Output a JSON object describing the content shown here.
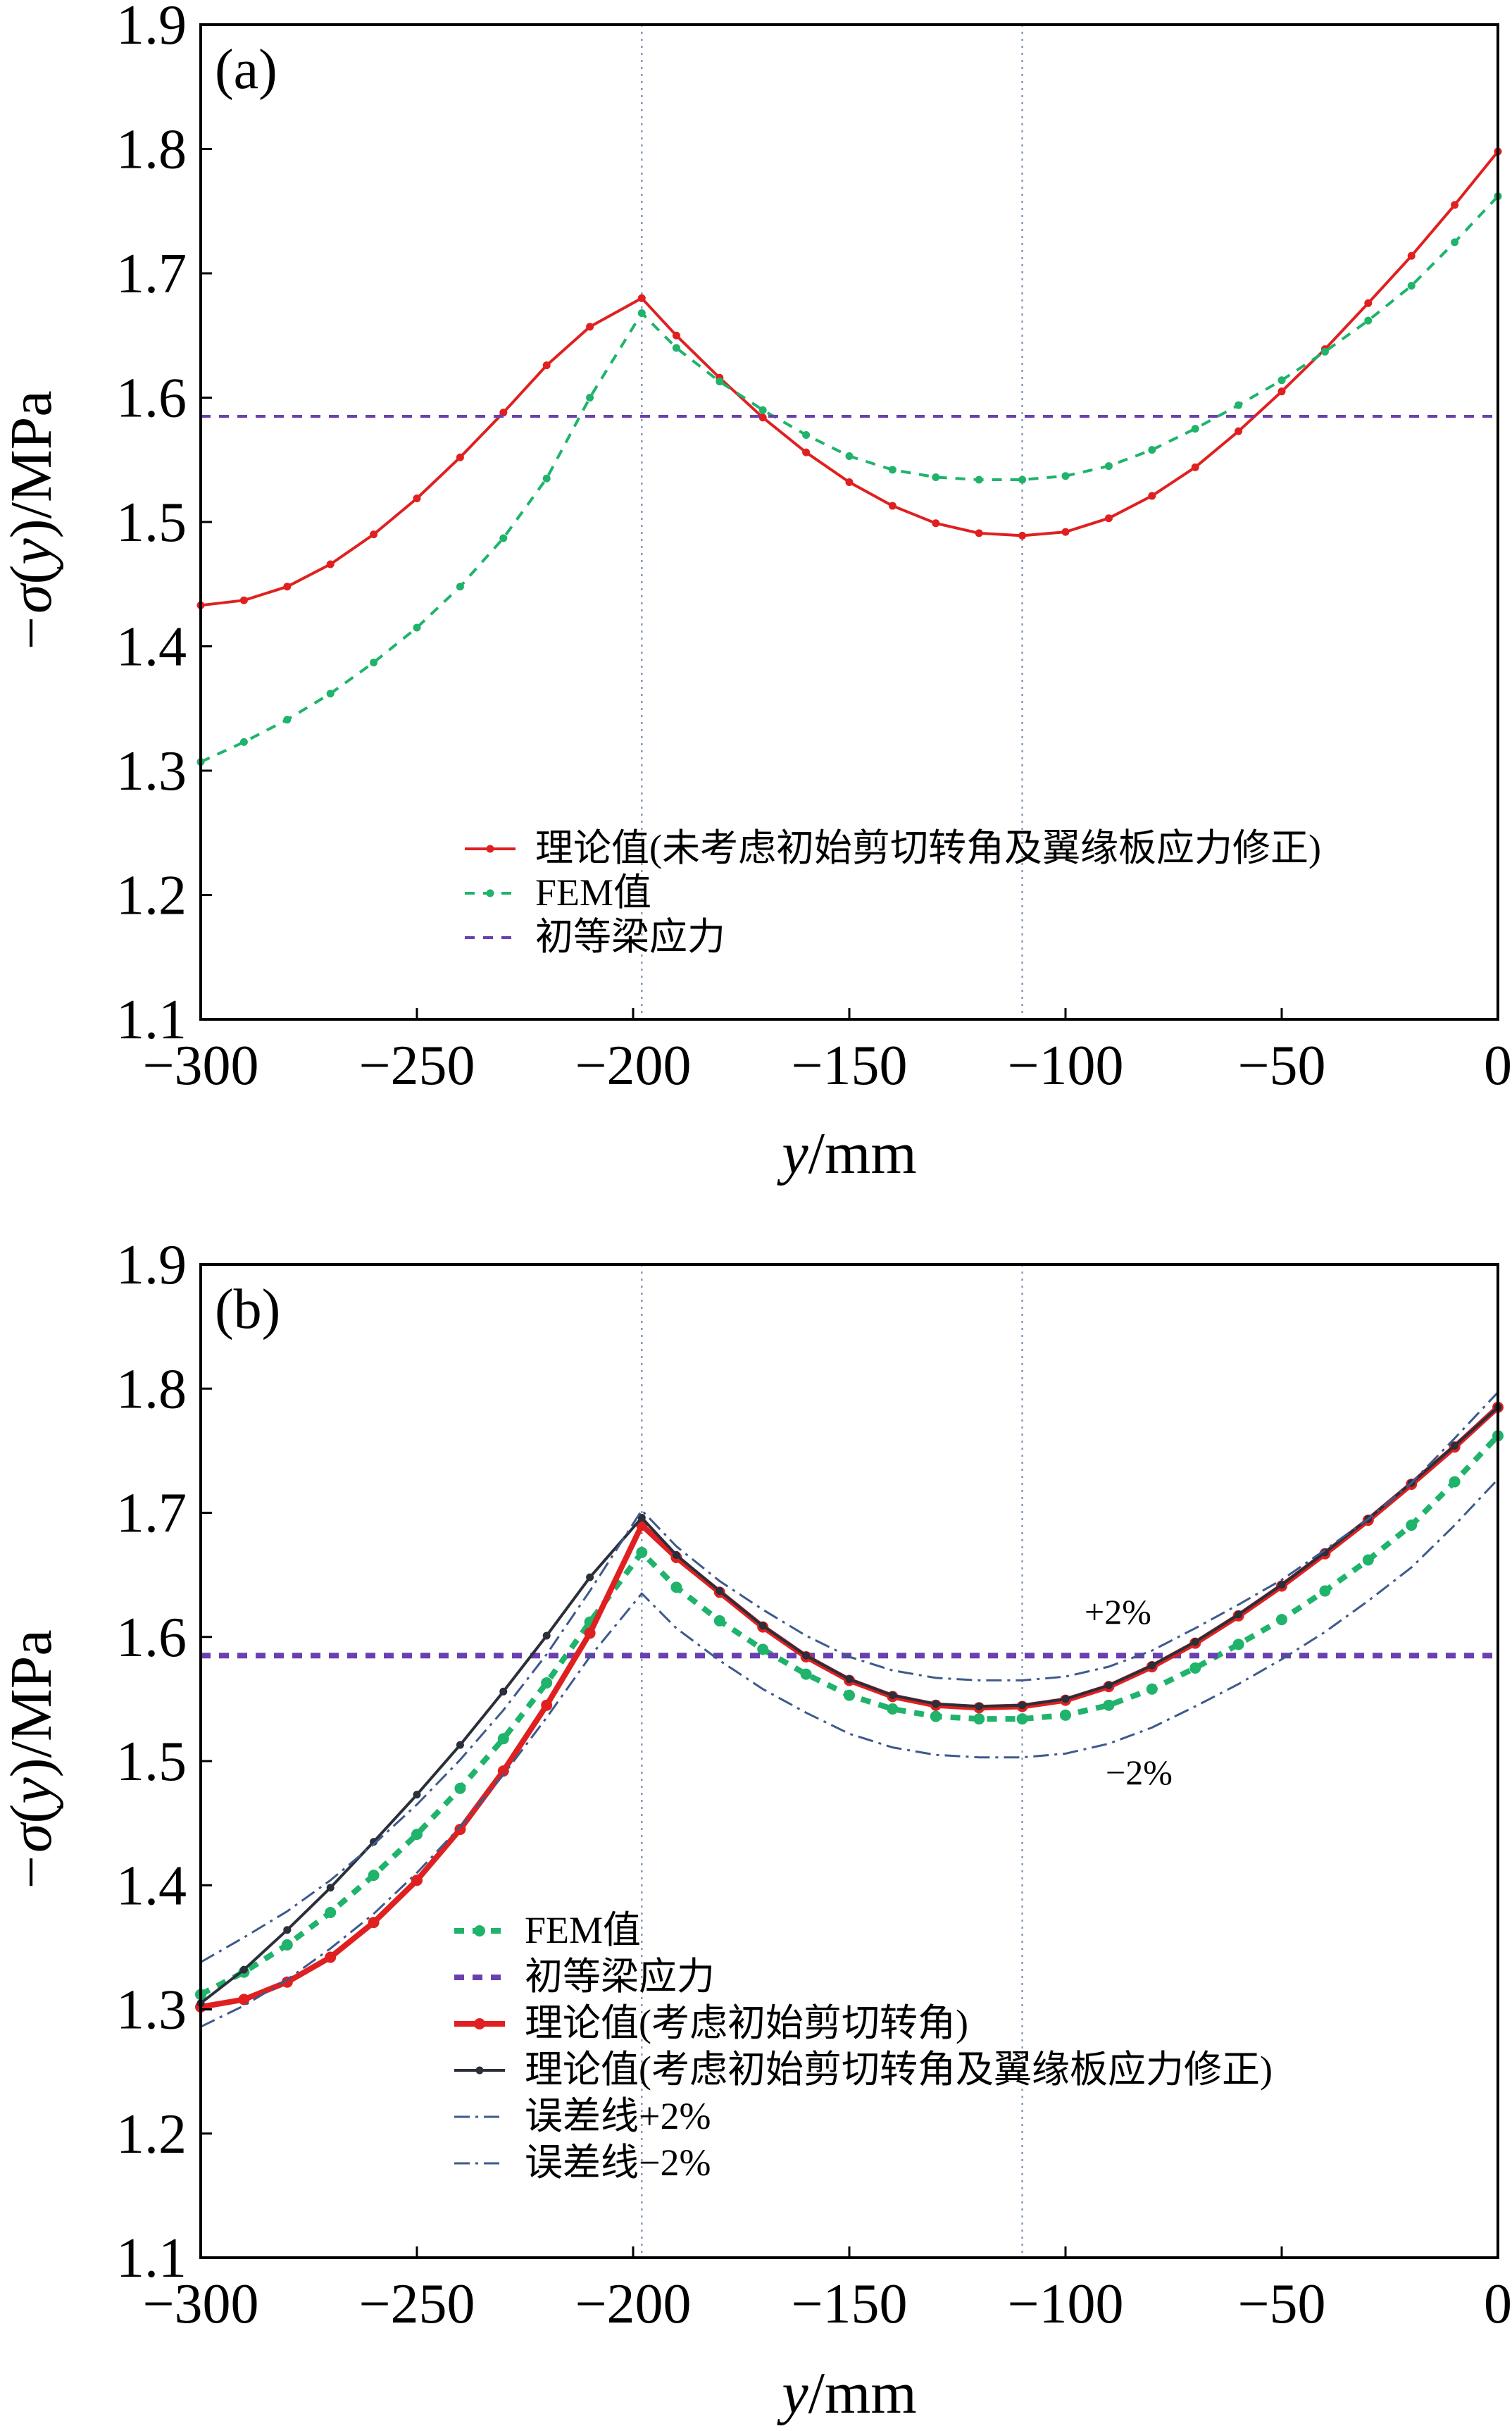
{
  "chart_data": [
    {
      "type": "line",
      "panel_label": "(a)",
      "xlabel": "y/mm",
      "ylabel": "−σ(y)/MPa",
      "xlim": [
        -300,
        0
      ],
      "ylim": [
        1.1,
        1.9
      ],
      "x_ticks": [
        "−300",
        "−250",
        "−200",
        "−150",
        "−100",
        "−50",
        "0"
      ],
      "y_ticks": [
        "1.1",
        "1.2",
        "1.3",
        "1.4",
        "1.5",
        "1.6",
        "1.7",
        "1.8",
        "1.9"
      ],
      "vertical_lines": [
        -198,
        -110
      ],
      "legend_position": "lower-right",
      "series": [
        {
          "name": "理论值(未考虑初始剪切转角及翼缘板应力修正)",
          "color": "#e02020",
          "style": "solid-marker",
          "x": [
            -300,
            -290,
            -280,
            -270,
            -260,
            -250,
            -240,
            -230,
            -220,
            -210,
            -198,
            -190,
            -180,
            -170,
            -160,
            -150,
            -140,
            -130,
            -120,
            -110,
            -100,
            -90,
            -80,
            -70,
            -60,
            -50,
            -40,
            -30,
            -20,
            -10,
            0
          ],
          "values": [
            1.433,
            1.437,
            1.448,
            1.466,
            1.49,
            1.519,
            1.552,
            1.588,
            1.626,
            1.657,
            1.68,
            1.65,
            1.616,
            1.584,
            1.556,
            1.532,
            1.513,
            1.499,
            1.491,
            1.489,
            1.492,
            1.503,
            1.521,
            1.544,
            1.573,
            1.605,
            1.639,
            1.676,
            1.714,
            1.755,
            1.798
          ]
        },
        {
          "name": "FEM值",
          "color": "#1fb36b",
          "style": "dashed-marker",
          "x": [
            -300,
            -290,
            -280,
            -270,
            -260,
            -250,
            -240,
            -230,
            -220,
            -210,
            -198,
            -190,
            -180,
            -170,
            -160,
            -150,
            -140,
            -130,
            -120,
            -110,
            -100,
            -90,
            -80,
            -70,
            -60,
            -50,
            -40,
            -30,
            -20,
            -10,
            0
          ],
          "values": [
            1.307,
            1.323,
            1.341,
            1.362,
            1.387,
            1.415,
            1.448,
            1.487,
            1.535,
            1.6,
            1.668,
            1.64,
            1.613,
            1.59,
            1.57,
            1.553,
            1.542,
            1.536,
            1.534,
            1.534,
            1.537,
            1.545,
            1.558,
            1.575,
            1.594,
            1.614,
            1.637,
            1.662,
            1.69,
            1.725,
            1.762
          ]
        },
        {
          "name": "初等梁应力",
          "color": "#6a3fb0",
          "style": "dashed",
          "x": [
            -300,
            0
          ],
          "values": [
            1.585,
            1.585
          ]
        }
      ]
    },
    {
      "type": "line",
      "panel_label": "(b)",
      "xlabel": "y/mm",
      "ylabel": "−σ(y)/MPa",
      "xlim": [
        -300,
        0
      ],
      "ylim": [
        1.1,
        1.9
      ],
      "x_ticks": [
        "−300",
        "−250",
        "−200",
        "−150",
        "−100",
        "−50",
        "0"
      ],
      "y_ticks": [
        "1.1",
        "1.2",
        "1.3",
        "1.4",
        "1.5",
        "1.6",
        "1.7",
        "1.8",
        "1.9"
      ],
      "vertical_lines": [
        -198,
        -110
      ],
      "legend_position": "lower-left",
      "annotations": [
        "+2%",
        "−2%"
      ],
      "series": [
        {
          "name": "FEM值",
          "color": "#1fb36b",
          "style": "dashed-marker-thick",
          "x": [
            -300,
            -290,
            -280,
            -270,
            -260,
            -250,
            -240,
            -230,
            -220,
            -210,
            -198,
            -190,
            -180,
            -170,
            -160,
            -150,
            -140,
            -130,
            -120,
            -110,
            -100,
            -90,
            -80,
            -70,
            -60,
            -50,
            -40,
            -30,
            -20,
            -10,
            0
          ],
          "values": [
            1.312,
            1.33,
            1.352,
            1.378,
            1.408,
            1.441,
            1.478,
            1.518,
            1.563,
            1.612,
            1.668,
            1.64,
            1.613,
            1.59,
            1.57,
            1.553,
            1.542,
            1.536,
            1.534,
            1.534,
            1.537,
            1.545,
            1.558,
            1.575,
            1.594,
            1.614,
            1.637,
            1.662,
            1.69,
            1.725,
            1.762
          ]
        },
        {
          "name": "初等梁应力",
          "color": "#6a3fb0",
          "style": "dashed-thick",
          "x": [
            -300,
            0
          ],
          "values": [
            1.585,
            1.585
          ]
        },
        {
          "name": "理论值(考虑初始剪切转角)",
          "color": "#e02020",
          "style": "solid-marker-thick",
          "x": [
            -300,
            -290,
            -280,
            -270,
            -260,
            -250,
            -240,
            -230,
            -220,
            -210,
            -198,
            -190,
            -180,
            -170,
            -160,
            -150,
            -140,
            -130,
            -120,
            -110,
            -100,
            -90,
            -80,
            -70,
            -60,
            -50,
            -40,
            -30,
            -20,
            -10,
            0
          ],
          "values": [
            1.302,
            1.308,
            1.322,
            1.342,
            1.37,
            1.404,
            1.445,
            1.492,
            1.545,
            1.603,
            1.69,
            1.664,
            1.636,
            1.608,
            1.584,
            1.565,
            1.552,
            1.545,
            1.543,
            1.544,
            1.549,
            1.56,
            1.576,
            1.595,
            1.617,
            1.641,
            1.667,
            1.694,
            1.723,
            1.753,
            1.785
          ]
        },
        {
          "name": "理论值(考虑初始剪切转角及翼缘板应力修正)",
          "color": "#2a2f3a",
          "style": "solid-marker",
          "x": [
            -300,
            -290,
            -280,
            -270,
            -260,
            -250,
            -240,
            -230,
            -220,
            -210,
            -198,
            -190,
            -180,
            -170,
            -160,
            -150,
            -140,
            -130,
            -120,
            -110,
            -100,
            -90,
            -80,
            -70,
            -60,
            -50,
            -40,
            -30,
            -20,
            -10,
            0
          ],
          "values": [
            1.305,
            1.332,
            1.364,
            1.398,
            1.435,
            1.473,
            1.513,
            1.556,
            1.601,
            1.648,
            1.696,
            1.666,
            1.637,
            1.609,
            1.585,
            1.566,
            1.553,
            1.546,
            1.544,
            1.545,
            1.55,
            1.561,
            1.577,
            1.596,
            1.618,
            1.642,
            1.668,
            1.695,
            1.724,
            1.754,
            1.785
          ]
        },
        {
          "name": "误差线+2%",
          "color": "#3d5a8c",
          "style": "dashdot",
          "x": [
            -300,
            -290,
            -280,
            -270,
            -260,
            -250,
            -240,
            -230,
            -220,
            -210,
            -198,
            -190,
            -180,
            -170,
            -160,
            -150,
            -140,
            -130,
            -120,
            -110,
            -100,
            -90,
            -80,
            -70,
            -60,
            -50,
            -40,
            -30,
            -20,
            -10,
            0
          ],
          "values": [
            1.338,
            1.358,
            1.379,
            1.404,
            1.433,
            1.465,
            1.501,
            1.541,
            1.586,
            1.637,
            1.702,
            1.673,
            1.645,
            1.622,
            1.601,
            1.584,
            1.573,
            1.567,
            1.565,
            1.565,
            1.568,
            1.576,
            1.589,
            1.607,
            1.626,
            1.646,
            1.67,
            1.695,
            1.724,
            1.76,
            1.797
          ]
        },
        {
          "name": "误差线−2%",
          "color": "#3d5a8c",
          "style": "dashdot",
          "x": [
            -300,
            -290,
            -280,
            -270,
            -260,
            -250,
            -240,
            -230,
            -220,
            -210,
            -198,
            -190,
            -180,
            -170,
            -160,
            -150,
            -140,
            -130,
            -120,
            -110,
            -100,
            -90,
            -80,
            -70,
            -60,
            -50,
            -40,
            -30,
            -20,
            -10,
            0
          ],
          "values": [
            1.286,
            1.303,
            1.324,
            1.349,
            1.377,
            1.41,
            1.447,
            1.489,
            1.535,
            1.584,
            1.635,
            1.607,
            1.581,
            1.558,
            1.539,
            1.522,
            1.511,
            1.505,
            1.503,
            1.503,
            1.506,
            1.514,
            1.527,
            1.544,
            1.562,
            1.582,
            1.604,
            1.629,
            1.656,
            1.69,
            1.727
          ]
        }
      ]
    }
  ]
}
